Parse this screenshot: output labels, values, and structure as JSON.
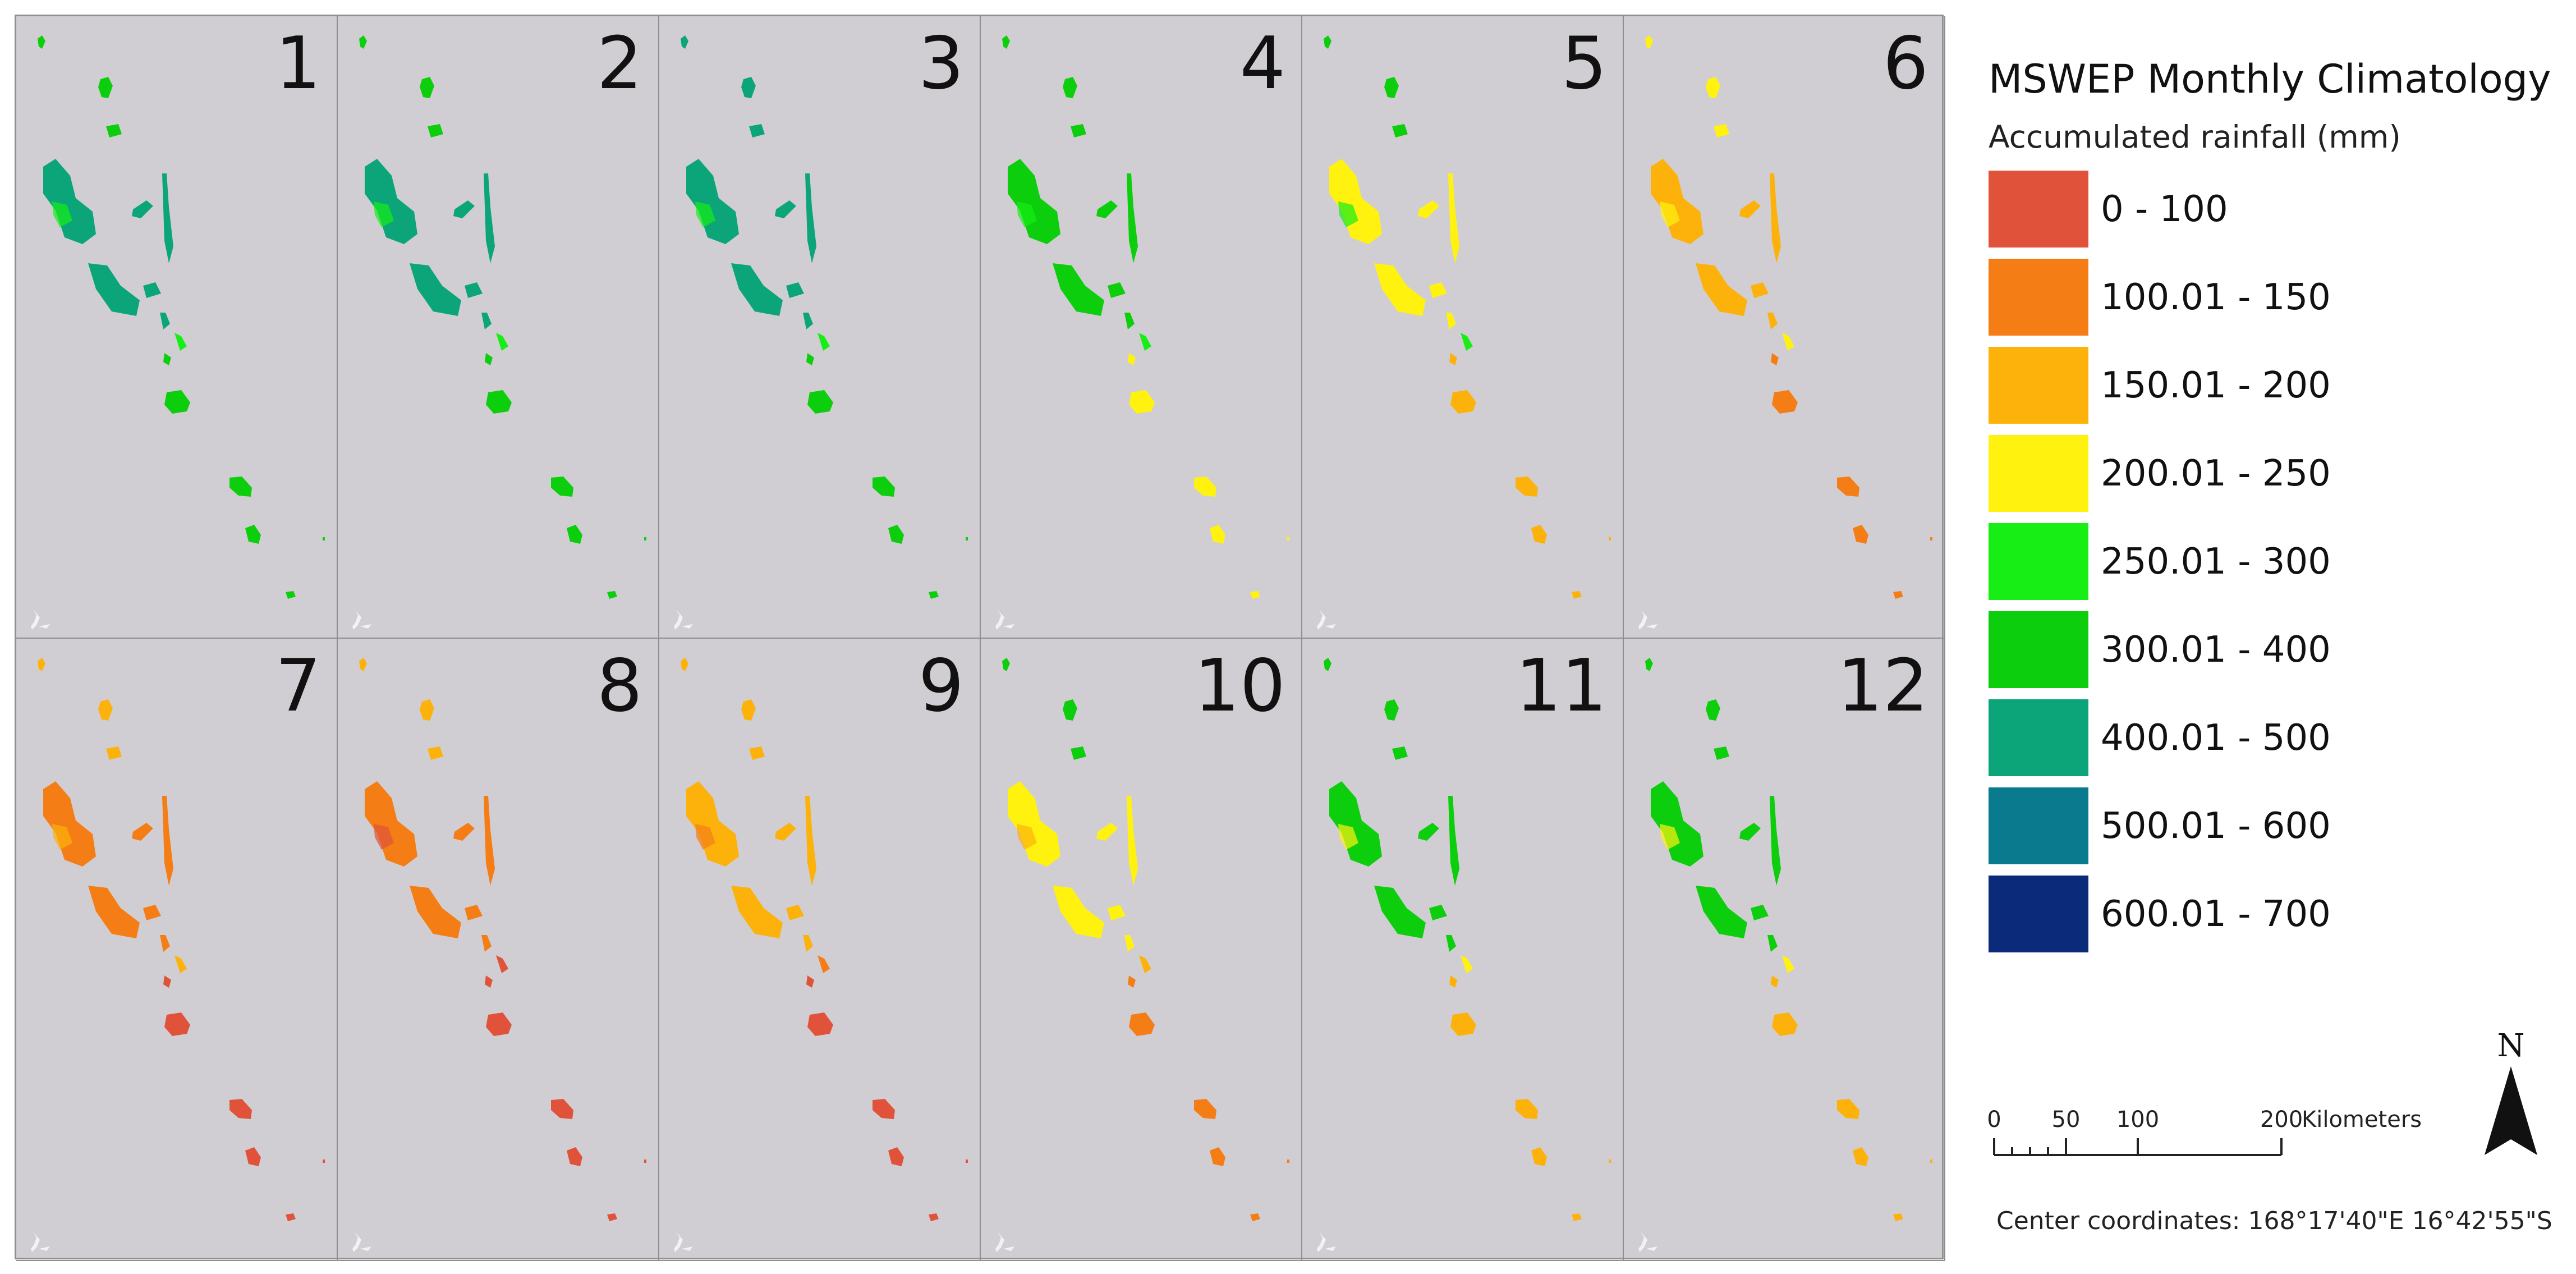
{
  "legend": {
    "title": "MSWEP Monthly Climatology",
    "subtitle": "Accumulated rainfall (mm)",
    "classes": [
      {
        "label": "0 - 100",
        "color": "#e0533a"
      },
      {
        "label": "100.01 - 150",
        "color": "#f57d15"
      },
      {
        "label": "150.01 - 200",
        "color": "#fcb20a"
      },
      {
        "label": "200.01 - 250",
        "color": "#fff20f"
      },
      {
        "label": "250.01 - 300",
        "color": "#16ee16"
      },
      {
        "label": "300.01 - 400",
        "color": "#0cce0c"
      },
      {
        "label": "400.01 - 500",
        "color": "#0ca57a"
      },
      {
        "label": "500.01 - 600",
        "color": "#0a7a8f"
      },
      {
        "label": "600.01 - 700",
        "color": "#0b2a7a"
      }
    ]
  },
  "panels": [
    {
      "month": "1",
      "main": "#0ca57a",
      "north": "#0cce0c",
      "south": "#0cce0c",
      "accent": "#16ee16"
    },
    {
      "month": "2",
      "main": "#0ca57a",
      "north": "#0cce0c",
      "south": "#0cce0c",
      "accent": "#16ee16"
    },
    {
      "month": "3",
      "main": "#0ca57a",
      "north": "#0ca57a",
      "south": "#0cce0c",
      "accent": "#16ee16"
    },
    {
      "month": "4",
      "main": "#0cce0c",
      "north": "#0cce0c",
      "south": "#fff20f",
      "accent": "#16ee16"
    },
    {
      "month": "5",
      "main": "#fff20f",
      "north": "#0cce0c",
      "south": "#fcb20a",
      "accent": "#16ee16"
    },
    {
      "month": "6",
      "main": "#fcb20a",
      "north": "#fff20f",
      "south": "#f57d15",
      "accent": "#fff20f"
    },
    {
      "month": "7",
      "main": "#f57d15",
      "north": "#fcb20a",
      "south": "#e0533a",
      "accent": "#fcb20a"
    },
    {
      "month": "8",
      "main": "#f57d15",
      "north": "#fcb20a",
      "south": "#e0533a",
      "accent": "#e0533a"
    },
    {
      "month": "9",
      "main": "#fcb20a",
      "north": "#fcb20a",
      "south": "#e0533a",
      "accent": "#f57d15"
    },
    {
      "month": "10",
      "main": "#fff20f",
      "north": "#0cce0c",
      "south": "#f57d15",
      "accent": "#fcb20a"
    },
    {
      "month": "11",
      "main": "#0cce0c",
      "north": "#0cce0c",
      "south": "#fcb20a",
      "accent": "#fff20f"
    },
    {
      "month": "12",
      "main": "#0cce0c",
      "north": "#0cce0c",
      "south": "#fcb20a",
      "accent": "#fff20f"
    }
  ],
  "north_arrow": {
    "label": "N"
  },
  "scale_bar": {
    "ticks": [
      "0",
      "50",
      "100",
      "200"
    ],
    "unit": "Kilometers"
  },
  "center_coordinates": "Center coordinates: 168°17'40\"E 16°42'55\"S"
}
